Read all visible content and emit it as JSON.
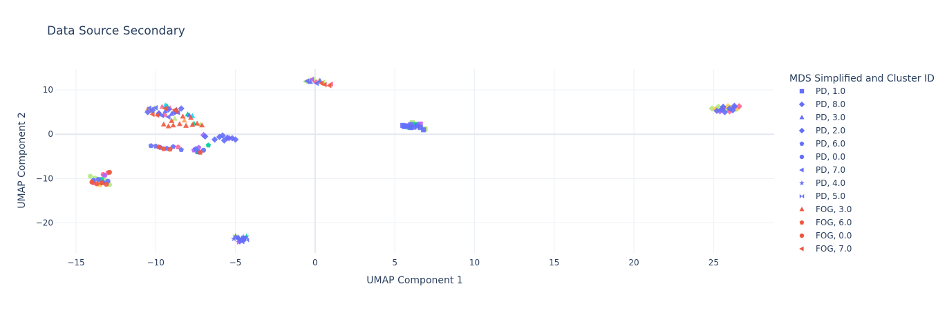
{
  "chart_data": {
    "type": "scatter",
    "title": "Data Source Secondary",
    "xlabel": "UMAP Component 1",
    "ylabel": "UMAP Component 2",
    "xlim": [
      -16.3,
      28.8
    ],
    "ylim": [
      -26.8,
      14.7
    ],
    "xticks": [
      -15,
      -10,
      -5,
      0,
      5,
      10,
      15,
      20,
      25
    ],
    "yticks": [
      -20,
      -10,
      0,
      10
    ],
    "grid": true,
    "legend": {
      "title": "MDS Simplified and Cluster ID",
      "placement": "right"
    },
    "series": [
      {
        "name": "PD, 1.0",
        "symbol": "square",
        "color": "#636efa",
        "points": [
          [
            5.5,
            2.0
          ],
          [
            5.8,
            1.9
          ],
          [
            6.0,
            2.2
          ],
          [
            6.2,
            1.6
          ],
          [
            6.4,
            1.9
          ],
          [
            6.6,
            1.5
          ],
          [
            6.8,
            1.0
          ],
          [
            6.0,
            1.5
          ],
          [
            5.6,
            1.7
          ]
        ]
      },
      {
        "name": "PD, 8.0",
        "symbol": "diamond",
        "color": "#636efa",
        "points": [
          [
            25.2,
            5.3
          ],
          [
            25.5,
            5.6
          ],
          [
            25.7,
            5.0
          ],
          [
            26.0,
            5.8
          ],
          [
            26.2,
            5.4
          ],
          [
            -6.3,
            -1.2
          ],
          [
            -6.0,
            -0.6
          ],
          [
            -5.8,
            -0.3
          ],
          [
            -5.5,
            -0.8
          ],
          [
            -5.2,
            -0.9
          ],
          [
            -5.0,
            -1.2
          ],
          [
            -6.9,
            -0.5
          ],
          [
            -5.7,
            -1.4
          ]
        ]
      },
      {
        "name": "PD, 3.0",
        "symbol": "triangle",
        "color": "#636efa",
        "points": [
          [
            -9.8,
            4.8
          ],
          [
            -9.4,
            5.2
          ],
          [
            -9.0,
            4.6
          ],
          [
            -8.7,
            5.5
          ],
          [
            -7.9,
            4.3
          ],
          [
            -4.8,
            -23.3
          ],
          [
            -4.6,
            -23.6
          ],
          [
            0.3,
            12.1
          ],
          [
            -0.3,
            11.8
          ]
        ]
      },
      {
        "name": "PD, 2.0",
        "symbol": "diamond",
        "color": "#636efa",
        "points": [
          [
            -10.5,
            5.0
          ],
          [
            -10.2,
            5.4
          ],
          [
            -9.8,
            4.7
          ],
          [
            -9.2,
            5.6
          ],
          [
            -8.8,
            5.0
          ],
          [
            -8.4,
            5.8
          ],
          [
            25.6,
            6.2
          ],
          [
            26.3,
            6.4
          ]
        ]
      },
      {
        "name": "PD, 6.0",
        "symbol": "pentagon",
        "color": "#636efa",
        "points": [
          [
            -10.3,
            -2.6
          ],
          [
            -10.0,
            -2.7
          ],
          [
            -9.7,
            -3.0
          ],
          [
            -9.3,
            -3.2
          ],
          [
            -8.9,
            -2.8
          ],
          [
            -8.4,
            -3.5
          ],
          [
            -7.5,
            -3.3
          ]
        ]
      },
      {
        "name": "PD, 0.0",
        "symbol": "circle",
        "color": "#636efa",
        "points": [
          [
            -13.9,
            -10.4
          ],
          [
            -13.6,
            -10.2
          ],
          [
            -13.3,
            -10.9
          ],
          [
            -13.0,
            -10.6
          ],
          [
            -7.3,
            -4.0
          ],
          [
            -7.0,
            -3.6
          ]
        ]
      },
      {
        "name": "PD, 7.0",
        "symbol": "triangle-left",
        "color": "#636efa",
        "points": [
          [
            -10.4,
            5.9
          ],
          [
            -10.0,
            6.0
          ],
          [
            -9.6,
            4.2
          ],
          [
            -9.2,
            3.9
          ],
          [
            -8.6,
            4.9
          ],
          [
            -0.5,
            12.0
          ],
          [
            0.1,
            11.5
          ]
        ]
      },
      {
        "name": "PD, 4.0",
        "symbol": "star",
        "color": "#636efa",
        "points": [
          [
            -5.0,
            -23.1
          ],
          [
            -4.8,
            -23.8
          ],
          [
            -4.6,
            -24.2
          ],
          [
            -4.4,
            -23.5
          ],
          [
            -4.9,
            -23.4
          ],
          [
            -4.7,
            -24.0
          ],
          [
            -4.5,
            -23.2
          ],
          [
            -5.1,
            -23.6
          ]
        ]
      },
      {
        "name": "PD, 5.0",
        "symbol": "bowtie",
        "color": "#636efa",
        "points": [
          [
            -4.7,
            -23.4
          ],
          [
            -4.5,
            -23.7
          ],
          [
            -4.4,
            -23.3
          ],
          [
            -4.3,
            -23.9
          ],
          [
            -4.6,
            -24.3
          ]
        ]
      },
      {
        "name": "FOG, 3.0",
        "symbol": "triangle",
        "color": "#ef553b",
        "points": [
          [
            -9.5,
            2.2
          ],
          [
            -9.2,
            1.8
          ],
          [
            -8.9,
            2.0
          ],
          [
            -8.5,
            2.3
          ],
          [
            -8.1,
            1.9
          ],
          [
            -7.7,
            2.1
          ],
          [
            -7.4,
            2.4
          ],
          [
            -7.1,
            2.0
          ],
          [
            -8.3,
            4.0
          ],
          [
            -7.8,
            3.7
          ],
          [
            -9.0,
            3.0
          ]
        ]
      },
      {
        "name": "FOG, 6.0",
        "symbol": "pentagon",
        "color": "#ef553b",
        "points": [
          [
            -9.8,
            -2.9
          ],
          [
            -9.5,
            -3.3
          ],
          [
            -9.1,
            -3.4
          ],
          [
            -7.2,
            -4.1
          ]
        ]
      },
      {
        "name": "FOG, 0.0",
        "symbol": "circle",
        "color": "#ef553b",
        "points": [
          [
            -14.0,
            -10.8
          ],
          [
            -13.7,
            -11.2
          ],
          [
            -13.4,
            -11.0
          ],
          [
            -13.1,
            -11.3
          ],
          [
            -12.9,
            -8.6
          ]
        ]
      },
      {
        "name": "FOG, 7.0",
        "symbol": "triangle-left",
        "color": "#ef553b",
        "points": [
          [
            -10.2,
            4.5
          ],
          [
            -9.9,
            4.3
          ],
          [
            -9.4,
            5.8
          ],
          [
            -8.8,
            5.5
          ],
          [
            -8.7,
            5.2
          ],
          [
            0.6,
            11.2
          ],
          [
            0.9,
            11.0
          ],
          [
            0.4,
            11.5
          ]
        ]
      }
    ],
    "unlabeled_points": [
      {
        "symbol": "diamond",
        "color": "#b6e880",
        "points": [
          [
            24.9,
            5.8
          ],
          [
            25.3,
            6.2
          ],
          [
            25.8,
            5.5
          ],
          [
            26.1,
            6.0
          ],
          [
            26.4,
            5.7
          ]
        ]
      },
      {
        "symbol": "diamond",
        "color": "#fecb52",
        "points": [
          [
            25.1,
            5.6
          ],
          [
            25.9,
            6.3
          ],
          [
            26.5,
            5.9
          ]
        ]
      },
      {
        "symbol": "diamond",
        "color": "#ab63fa",
        "points": [
          [
            25.4,
            5.2
          ],
          [
            26.3,
            6.1
          ],
          [
            -5.4,
            -0.9
          ],
          [
            -7.0,
            -0.2
          ]
        ]
      },
      {
        "symbol": "diamond",
        "color": "#ff6692",
        "points": [
          [
            26.0,
            5.2
          ],
          [
            25.6,
            5.9
          ],
          [
            26.6,
            6.3
          ]
        ]
      },
      {
        "symbol": "square",
        "color": "#b6e880",
        "points": [
          [
            6.1,
            2.6
          ],
          [
            6.5,
            1.8
          ],
          [
            6.9,
            1.2
          ]
        ]
      },
      {
        "symbol": "square",
        "color": "#00cc96",
        "points": [
          [
            6.3,
            2.2
          ],
          [
            5.9,
            1.6
          ]
        ]
      },
      {
        "symbol": "square",
        "color": "#ab63fa",
        "points": [
          [
            6.6,
            2.3
          ]
        ]
      },
      {
        "symbol": "circle",
        "color": "#b6e880",
        "points": [
          [
            -14.1,
            -9.5
          ],
          [
            -13.8,
            -9.9
          ],
          [
            -12.9,
            -11.4
          ],
          [
            -13.2,
            -10.4
          ]
        ]
      },
      {
        "symbol": "circle",
        "color": "#ff6692",
        "points": [
          [
            -13.0,
            -8.7
          ],
          [
            -13.3,
            -9.1
          ],
          [
            -13.9,
            -11.0
          ]
        ]
      },
      {
        "symbol": "circle",
        "color": "#fecb52",
        "points": [
          [
            -13.5,
            -11.4
          ]
        ]
      },
      {
        "symbol": "circle",
        "color": "#00cc96",
        "points": [
          [
            -13.4,
            -10.2
          ]
        ]
      },
      {
        "symbol": "circle",
        "color": "#ab63fa",
        "points": [
          [
            -13.2,
            -9.3
          ]
        ]
      },
      {
        "symbol": "triangle-left",
        "color": "#b6e880",
        "points": [
          [
            -0.6,
            11.9
          ],
          [
            -0.1,
            12.3
          ],
          [
            0.5,
            11.7
          ]
        ]
      },
      {
        "symbol": "triangle-left",
        "color": "#fecb52",
        "points": [
          [
            -0.4,
            12.2
          ],
          [
            0.2,
            12.0
          ]
        ]
      },
      {
        "symbol": "triangle-left",
        "color": "#ff6692",
        "points": [
          [
            0.0,
            11.8
          ],
          [
            1.0,
            11.3
          ]
        ]
      },
      {
        "symbol": "triangle-left",
        "color": "#ab63fa",
        "points": [
          [
            -0.2,
            12.4
          ]
        ]
      },
      {
        "symbol": "triangle",
        "color": "#ff6692",
        "points": [
          [
            -9.6,
            6.2
          ],
          [
            -9.1,
            5.9
          ],
          [
            -8.7,
            5.0
          ],
          [
            -9.4,
            4.4
          ]
        ]
      },
      {
        "symbol": "triangle",
        "color": "#00cc96",
        "points": [
          [
            -9.3,
            6.4
          ],
          [
            -8.0,
            4.5
          ],
          [
            -7.6,
            2.4
          ]
        ]
      },
      {
        "symbol": "triangle",
        "color": "#19d3f3",
        "points": [
          [
            -9.4,
            6.5
          ],
          [
            -7.7,
            4.1
          ]
        ]
      },
      {
        "symbol": "triangle",
        "color": "#ffa15a",
        "points": [
          [
            -10.5,
            5.7
          ],
          [
            -10.3,
            5.2
          ],
          [
            -8.2,
            3.1
          ]
        ]
      },
      {
        "symbol": "triangle",
        "color": "#b6e880",
        "points": [
          [
            -10.1,
            5.9
          ],
          [
            -8.8,
            3.5
          ],
          [
            -7.2,
            2.2
          ]
        ]
      },
      {
        "symbol": "pentagon",
        "color": "#00cc96",
        "points": [
          [
            -7.4,
            -4.0
          ],
          [
            -6.7,
            -2.5
          ]
        ]
      },
      {
        "symbol": "pentagon",
        "color": "#ab63fa",
        "points": [
          [
            -7.6,
            -3.6
          ],
          [
            -7.3,
            -3.0
          ]
        ]
      },
      {
        "symbol": "pentagon",
        "color": "#ff6692",
        "points": [
          [
            -8.6,
            -2.9
          ]
        ]
      },
      {
        "symbol": "star",
        "color": "#ab63fa",
        "points": [
          [
            -4.5,
            -23.9
          ],
          [
            -4.8,
            -24.4
          ]
        ]
      },
      {
        "symbol": "star",
        "color": "#b6e880",
        "points": [
          [
            -5.0,
            -22.9
          ]
        ]
      },
      {
        "symbol": "star",
        "color": "#00cc96",
        "points": [
          [
            -4.3,
            -23.1
          ]
        ]
      }
    ]
  }
}
